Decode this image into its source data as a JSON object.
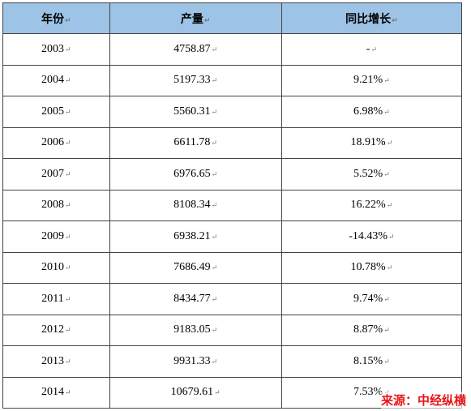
{
  "table": {
    "header": [
      "年份",
      "产量",
      "同比增长"
    ],
    "rows": [
      [
        "2003",
        "4758.87",
        "-"
      ],
      [
        "2004",
        "5197.33",
        "9.21%"
      ],
      [
        "2005",
        "5560.31",
        "6.98%"
      ],
      [
        "2006",
        "6611.78",
        "18.91%"
      ],
      [
        "2007",
        "6976.65",
        "5.52%"
      ],
      [
        "2008",
        "8108.34",
        "16.22%"
      ],
      [
        "2009",
        "6938.21",
        "-14.43%"
      ],
      [
        "2010",
        "7686.49",
        "10.78%"
      ],
      [
        "2011",
        "8434.77",
        "9.74%"
      ],
      [
        "2012",
        "9183.05",
        "8.87%"
      ],
      [
        "2013",
        "9931.33",
        "8.15%"
      ],
      [
        "2014",
        "10679.61",
        "7.53%"
      ]
    ]
  },
  "source": "来源：中经纵横"
}
